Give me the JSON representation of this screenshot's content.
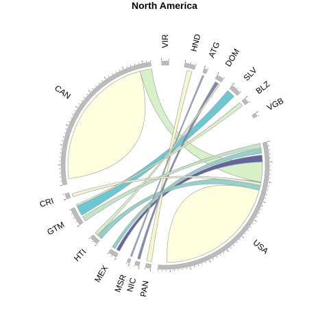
{
  "chart_data": {
    "type": "chord",
    "title": "North America",
    "sectors": [
      {
        "name": "USA",
        "start_deg": 77,
        "end_deg": 184,
        "ring_color": "#bbbbbb"
      },
      {
        "name": "PAN",
        "start_deg": 188,
        "end_deg": 191,
        "ring_color": "#bbbbbb"
      },
      {
        "name": "NIC",
        "start_deg": 194.5,
        "end_deg": 197,
        "ring_color": "#bbbbbb"
      },
      {
        "name": "MSR",
        "start_deg": 200,
        "end_deg": 201.5,
        "ring_color": "#bbbbbb"
      },
      {
        "name": "MEX",
        "start_deg": 208,
        "end_deg": 213,
        "ring_color": "#bbbbbb"
      },
      {
        "name": "HTI",
        "start_deg": 221,
        "end_deg": 226,
        "ring_color": "#bbbbbb"
      },
      {
        "name": "GTM",
        "start_deg": 235,
        "end_deg": 245,
        "ring_color": "#bbbbbb"
      },
      {
        "name": "CRI",
        "start_deg": 251,
        "end_deg": 254,
        "ring_color": "#bbbbbb"
      },
      {
        "name": "CAN",
        "start_deg": 259,
        "end_deg": 352,
        "ring_color": "#bbbbbb"
      },
      {
        "name": "VIR",
        "start_deg": 358,
        "end_deg": 2,
        "ring_color": "#bbbbbb"
      },
      {
        "name": "HND",
        "start_deg": 11,
        "end_deg": 17,
        "ring_color": "#bbbbbb"
      },
      {
        "name": "ATG",
        "start_deg": 22,
        "end_deg": 24,
        "ring_color": "#bbbbbb"
      },
      {
        "name": "DOM",
        "start_deg": 30,
        "end_deg": 34,
        "ring_color": "#bbbbbb"
      },
      {
        "name": "SLV",
        "start_deg": 40,
        "end_deg": 46,
        "ring_color": "#bbbbbb"
      },
      {
        "name": "BLZ",
        "start_deg": 50,
        "end_deg": 53,
        "ring_color": "#bbbbbb"
      },
      {
        "name": "VGB",
        "start_deg": 60,
        "end_deg": 62,
        "ring_color": "#bbbbbb"
      }
    ],
    "links": [
      {
        "from": "USA",
        "to": "USA",
        "from_arc": [
          105,
          179
        ],
        "to_arc": [
          105,
          179
        ],
        "color": "#ffffdd",
        "self": true
      },
      {
        "from": "CAN",
        "to": "CAN",
        "from_arc": [
          262,
          345
        ],
        "to_arc": [
          262,
          345
        ],
        "color": "#ffffdd",
        "self": true
      },
      {
        "from": "CAN",
        "to": "USA",
        "from_arc": [
          345,
          352
        ],
        "to_arc": [
          88,
          100
        ],
        "color": "#d4f0c4"
      },
      {
        "from": "USA",
        "to": "MEX",
        "from_arc": [
          84,
          88
        ],
        "to_arc": [
          208,
          210
        ],
        "color": "#5b5e9e"
      },
      {
        "from": "GTM",
        "to": "SLV",
        "from_arc": [
          239,
          245
        ],
        "to_arc": [
          40,
          45
        ],
        "color": "#63c5d1"
      },
      {
        "from": "HTI",
        "to": "USA",
        "from_arc": [
          221,
          224
        ],
        "to_arc": [
          100,
          105
        ],
        "color": "#8ecfc8"
      },
      {
        "from": "PAN",
        "to": "HND",
        "from_arc": [
          188,
          191
        ],
        "to_arc": [
          13,
          16
        ],
        "color": "#f6f6cc"
      },
      {
        "from": "NIC",
        "to": "DOM",
        "from_arc": [
          195,
          196.5
        ],
        "to_arc": [
          31,
          33
        ],
        "color": "#7a84a8"
      },
      {
        "from": "MSR",
        "to": "ATG",
        "from_arc": [
          200,
          201
        ],
        "to_arc": [
          22.5,
          23.5
        ],
        "color": "#8ea0c0"
      },
      {
        "from": "MEX",
        "to": "USA",
        "from_arc": [
          211,
          213
        ],
        "to_arc": [
          80,
          83
        ],
        "color": "#8ecfc8"
      },
      {
        "from": "GTM",
        "to": "USA",
        "from_arc": [
          235,
          238
        ],
        "to_arc": [
          77,
          79.5
        ],
        "color": "#bfe3c4"
      },
      {
        "from": "CRI",
        "to": "USA",
        "from_arc": [
          251,
          253
        ],
        "to_arc": [
          100.5,
          102
        ],
        "color": "#f2f2cf"
      },
      {
        "from": "GTM",
        "to": "BLZ",
        "from_arc": [
          245,
          246
        ],
        "to_arc": [
          50,
          52.5
        ],
        "color": "#d4f0c4"
      },
      {
        "from": "HTI",
        "to": "DOM",
        "from_arc": [
          224,
          226
        ],
        "to_arc": [
          33,
          34
        ],
        "color": "#d4f0c4"
      }
    ]
  }
}
